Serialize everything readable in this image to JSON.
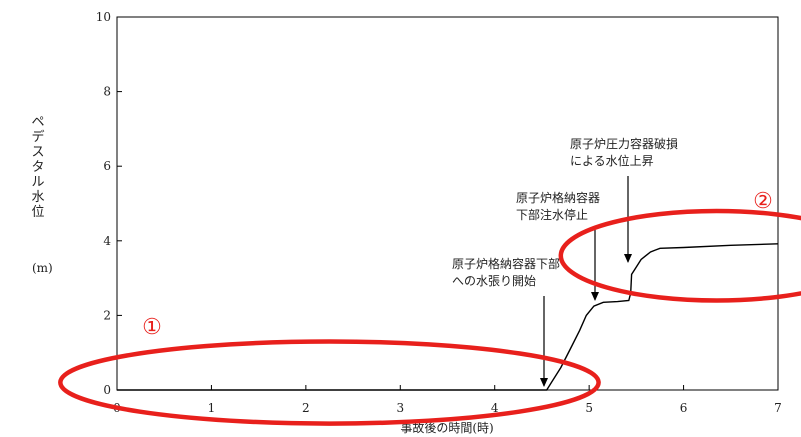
{
  "chart_data": {
    "type": "line",
    "xlabel": "事故後の時間(時)",
    "ylabel": "ペデスタル水位",
    "yunit": "(m)",
    "xlim": [
      0,
      7
    ],
    "ylim": [
      0,
      10
    ],
    "x_ticks": [
      "0",
      "1",
      "2",
      "3",
      "4",
      "5",
      "6",
      "7"
    ],
    "y_ticks": [
      "0",
      "2",
      "4",
      "6",
      "8",
      "10"
    ],
    "grid": false,
    "line_color": "#000000",
    "highlight_color": "#e8201c",
    "series": [
      {
        "x": [
          0,
          4.55,
          4.6,
          4.7,
          4.8,
          4.9,
          4.97,
          5.05,
          5.15,
          5.3,
          5.42,
          5.44,
          5.45,
          5.5,
          5.55,
          5.6,
          5.65,
          5.7,
          5.75,
          6.0,
          6.5,
          7.0
        ],
        "y": [
          0,
          0,
          0.2,
          0.6,
          1.1,
          1.6,
          2.0,
          2.25,
          2.35,
          2.37,
          2.4,
          2.6,
          3.1,
          3.3,
          3.5,
          3.6,
          3.7,
          3.75,
          3.8,
          3.82,
          3.88,
          3.92
        ]
      }
    ],
    "annotations": [
      {
        "lines": [
          "原子炉格納容器下部",
          "への水張り開始"
        ],
        "x": 4.55,
        "y": 0
      },
      {
        "lines": [
          "原子炉格納容器",
          "下部注水停止"
        ],
        "x": 5.0,
        "y": 2.2
      },
      {
        "lines": [
          "原子炉圧力容器破損",
          "による水位上昇"
        ],
        "x": 5.42,
        "y": 3.1
      }
    ],
    "highlights": [
      {
        "label": "①",
        "cx": 2.25,
        "cy": 0.2,
        "rx": 2.85,
        "ry": 1.1
      },
      {
        "label": "②",
        "cx": 6.35,
        "cy": 3.6,
        "rx": 1.65,
        "ry": 1.2
      }
    ]
  }
}
